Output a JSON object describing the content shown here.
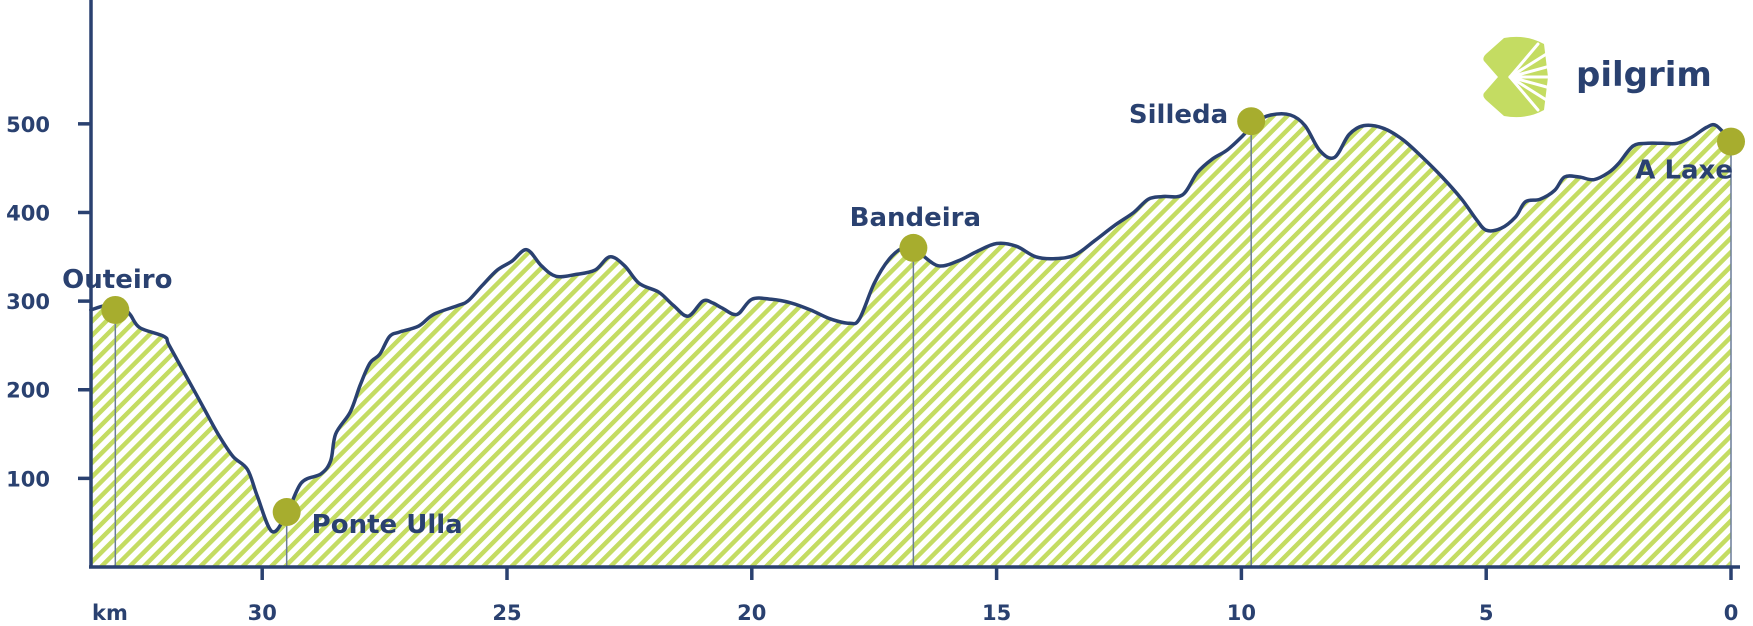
{
  "brand": {
    "name": "pilgrim",
    "logo_icon": "scallop-shell-icon"
  },
  "colors": {
    "line": "#2a4170",
    "fill": "#c4dc62",
    "marker": "#a7ad2e",
    "axis": "#2a4170"
  },
  "chart_data": {
    "type": "area",
    "title": "",
    "xlabel": "km",
    "ylabel": "",
    "x_reversed": true,
    "xlim": [
      0,
      33.5
    ],
    "ylim": [
      0,
      640
    ],
    "x_ticks": [
      {
        "value": 30,
        "label": "30"
      },
      {
        "value": 25,
        "label": "25"
      },
      {
        "value": 20,
        "label": "20"
      },
      {
        "value": 15,
        "label": "15"
      },
      {
        "value": 10,
        "label": "10"
      },
      {
        "value": 5,
        "label": "5"
      },
      {
        "value": 0,
        "label": "0"
      }
    ],
    "y_ticks": [
      {
        "value": 100,
        "label": "100"
      },
      {
        "value": 200,
        "label": "200"
      },
      {
        "value": 300,
        "label": "300"
      },
      {
        "value": 400,
        "label": "400"
      },
      {
        "value": 500,
        "label": "500"
      }
    ],
    "grid": false,
    "series": [
      {
        "points": [
          [
            33.5,
            290
          ],
          [
            33.2,
            295
          ],
          [
            32.9,
            295
          ],
          [
            32.7,
            285
          ],
          [
            32.5,
            270
          ],
          [
            32.0,
            260
          ],
          [
            31.9,
            250
          ],
          [
            31.5,
            210
          ],
          [
            31.2,
            180
          ],
          [
            30.9,
            150
          ],
          [
            30.6,
            125
          ],
          [
            30.3,
            110
          ],
          [
            30.1,
            80
          ],
          [
            29.8,
            40
          ],
          [
            29.5,
            60
          ],
          [
            29.2,
            95
          ],
          [
            28.8,
            105
          ],
          [
            28.6,
            120
          ],
          [
            28.5,
            150
          ],
          [
            28.2,
            175
          ],
          [
            28.0,
            205
          ],
          [
            27.8,
            230
          ],
          [
            27.6,
            240
          ],
          [
            27.4,
            260
          ],
          [
            27.2,
            265
          ],
          [
            26.8,
            272
          ],
          [
            26.5,
            285
          ],
          [
            26.0,
            295
          ],
          [
            25.8,
            300
          ],
          [
            25.5,
            318
          ],
          [
            25.2,
            335
          ],
          [
            24.9,
            345
          ],
          [
            24.6,
            358
          ],
          [
            24.3,
            340
          ],
          [
            24.0,
            328
          ],
          [
            23.6,
            330
          ],
          [
            23.2,
            335
          ],
          [
            22.9,
            350
          ],
          [
            22.6,
            340
          ],
          [
            22.3,
            320
          ],
          [
            21.9,
            310
          ],
          [
            21.6,
            295
          ],
          [
            21.3,
            283
          ],
          [
            21.0,
            300
          ],
          [
            20.8,
            298
          ],
          [
            20.6,
            292
          ],
          [
            20.3,
            285
          ],
          [
            20.0,
            302
          ],
          [
            19.6,
            302
          ],
          [
            19.2,
            298
          ],
          [
            18.8,
            290
          ],
          [
            18.4,
            280
          ],
          [
            18.0,
            275
          ],
          [
            17.8,
            280
          ],
          [
            17.5,
            320
          ],
          [
            17.2,
            347
          ],
          [
            16.9,
            360
          ],
          [
            16.6,
            355
          ],
          [
            16.2,
            340
          ],
          [
            15.8,
            345
          ],
          [
            15.4,
            356
          ],
          [
            15.0,
            365
          ],
          [
            14.6,
            362
          ],
          [
            14.2,
            350
          ],
          [
            13.8,
            348
          ],
          [
            13.4,
            352
          ],
          [
            13.0,
            368
          ],
          [
            12.6,
            385
          ],
          [
            12.2,
            400
          ],
          [
            11.9,
            415
          ],
          [
            11.6,
            418
          ],
          [
            11.2,
            420
          ],
          [
            10.9,
            445
          ],
          [
            10.6,
            460
          ],
          [
            10.3,
            470
          ],
          [
            10.0,
            485
          ],
          [
            9.7,
            502
          ],
          [
            9.4,
            510
          ],
          [
            9.0,
            510
          ],
          [
            8.7,
            498
          ],
          [
            8.4,
            470
          ],
          [
            8.1,
            462
          ],
          [
            7.8,
            488
          ],
          [
            7.5,
            498
          ],
          [
            7.1,
            495
          ],
          [
            6.7,
            482
          ],
          [
            6.3,
            462
          ],
          [
            5.9,
            440
          ],
          [
            5.5,
            415
          ],
          [
            5.2,
            392
          ],
          [
            5.0,
            380
          ],
          [
            4.7,
            382
          ],
          [
            4.4,
            395
          ],
          [
            4.2,
            412
          ],
          [
            3.9,
            415
          ],
          [
            3.6,
            425
          ],
          [
            3.4,
            440
          ],
          [
            3.1,
            440
          ],
          [
            2.8,
            437
          ],
          [
            2.5,
            445
          ],
          [
            2.3,
            455
          ],
          [
            2.0,
            475
          ],
          [
            1.7,
            478
          ],
          [
            1.4,
            478
          ],
          [
            1.1,
            478
          ],
          [
            0.8,
            485
          ],
          [
            0.5,
            496
          ],
          [
            0.3,
            498
          ],
          [
            0.0,
            480
          ]
        ]
      }
    ],
    "locations": [
      {
        "name": "Outeiro",
        "km": 33.0,
        "elevation": 290,
        "label_pos": "above"
      },
      {
        "name": "Ponte Ulla",
        "km": 29.5,
        "elevation": 62,
        "label_pos": "right"
      },
      {
        "name": "Bandeira",
        "km": 16.7,
        "elevation": 360,
        "label_pos": "above"
      },
      {
        "name": "Silleda",
        "km": 9.8,
        "elevation": 503,
        "label_pos": "left"
      },
      {
        "name": "A Laxe",
        "km": 0.0,
        "elevation": 480,
        "label_pos": "below-left"
      }
    ]
  }
}
